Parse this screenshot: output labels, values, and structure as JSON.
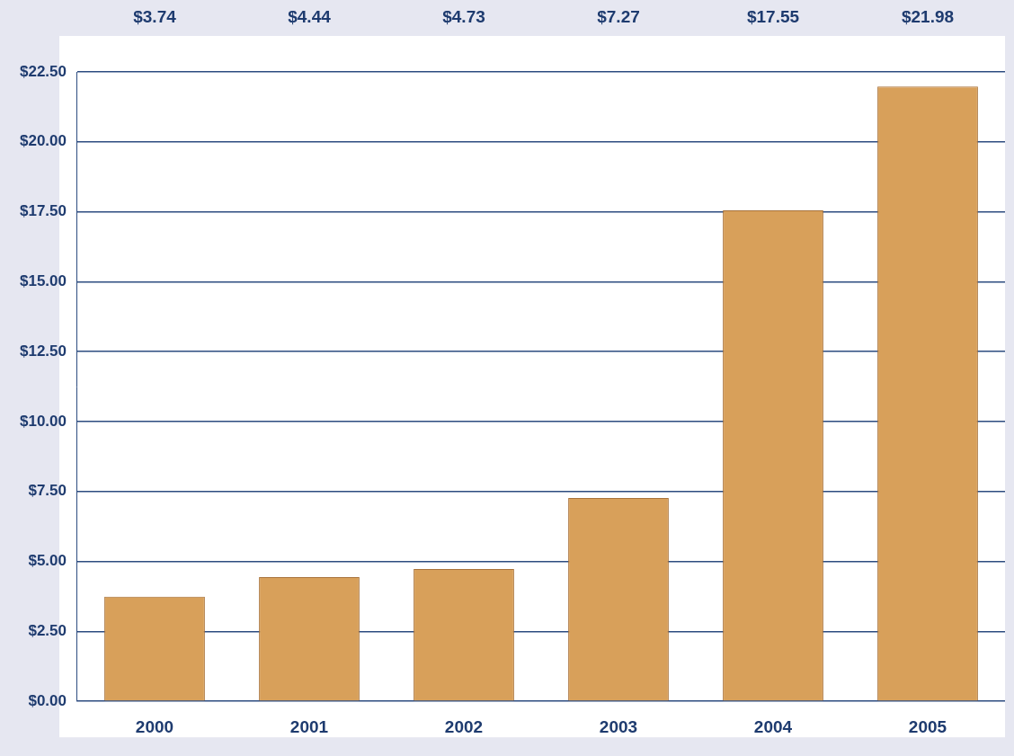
{
  "chart_data": {
    "type": "bar",
    "categories": [
      "2000",
      "2001",
      "2002",
      "2003",
      "2004",
      "2005"
    ],
    "values": [
      3.74,
      4.44,
      4.73,
      7.27,
      17.55,
      21.98
    ],
    "value_labels": [
      "$3.74",
      "$4.44",
      "$4.73",
      "$7.27",
      "$17.55",
      "$21.98"
    ],
    "data_labels": true,
    "color": "#d8a05a",
    "ylim": [
      0,
      22.5
    ],
    "yticks": [
      {
        "value": 0,
        "label": "$0.00"
      },
      {
        "value": 2.5,
        "label": "$2.50"
      },
      {
        "value": 5,
        "label": "$5.00"
      },
      {
        "value": 7.5,
        "label": "$7.50"
      },
      {
        "value": 10,
        "label": "$10.00"
      },
      {
        "value": 12.5,
        "label": "$12.50"
      },
      {
        "value": 15,
        "label": "$15.00"
      },
      {
        "value": 17.5,
        "label": "$17.50"
      },
      {
        "value": 20,
        "label": "$20.00"
      },
      {
        "value": 22.5,
        "label": "$22.50"
      }
    ],
    "grid": true
  }
}
